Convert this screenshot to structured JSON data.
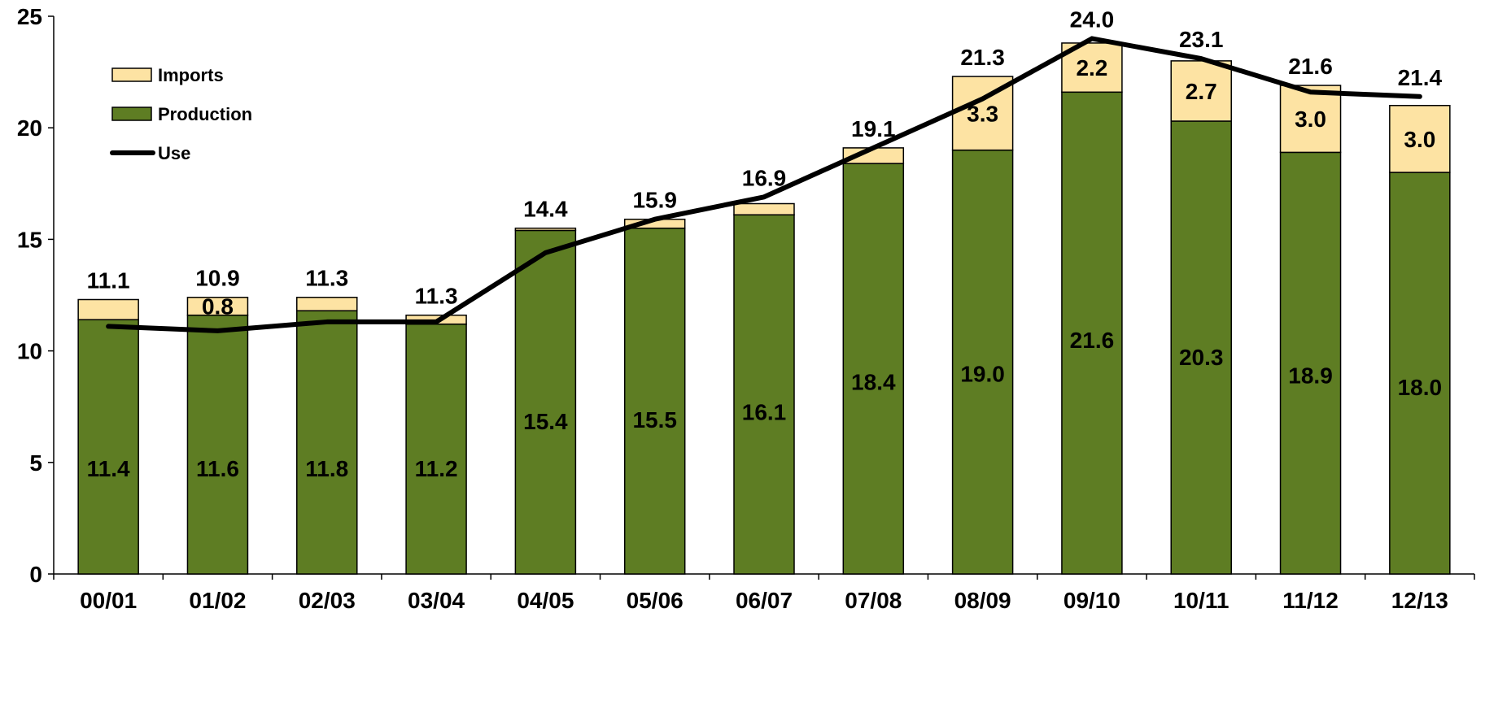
{
  "chart_data": {
    "type": "bar",
    "stacked": true,
    "title": "",
    "xlabel": "",
    "ylabel": "",
    "ylim": [
      0,
      25
    ],
    "yticks": [
      0,
      5,
      10,
      15,
      20,
      25
    ],
    "grid": false,
    "legend_position": "top-left",
    "categories": [
      "00/01",
      "01/02",
      "02/03",
      "03/04",
      "04/05",
      "05/06",
      "06/07",
      "07/08",
      "08/09",
      "09/10",
      "10/11",
      "11/12",
      "12/13"
    ],
    "series": [
      {
        "name": "Production",
        "kind": "bar",
        "color": "#5e7d23",
        "values": [
          11.4,
          11.6,
          11.8,
          11.2,
          15.4,
          15.5,
          16.1,
          18.4,
          19.0,
          21.6,
          20.3,
          18.9,
          18.0
        ],
        "labels": [
          "11.4",
          "11.6",
          "11.8",
          "11.2",
          "15.4",
          "15.5",
          "16.1",
          "18.4",
          "19.0",
          "21.6",
          "20.3",
          "18.9",
          "18.0"
        ]
      },
      {
        "name": "Imports",
        "kind": "bar",
        "color": "#fde3a3",
        "values": [
          0.9,
          0.8,
          0.6,
          0.4,
          0.1,
          0.4,
          0.5,
          0.7,
          3.3,
          2.2,
          2.7,
          3.0,
          3.0
        ],
        "labels": [
          "",
          "0.8",
          "",
          "",
          "",
          "",
          "",
          "",
          "3.3",
          "2.2",
          "2.7",
          "3.0",
          "3.0"
        ]
      },
      {
        "name": "Use",
        "kind": "line",
        "color": "#000000",
        "values": [
          11.1,
          10.9,
          11.3,
          11.3,
          14.4,
          15.9,
          16.9,
          19.1,
          21.3,
          24.0,
          23.1,
          21.6,
          21.4
        ],
        "labels": [
          "11.1",
          "10.9",
          "11.3",
          "11.3",
          "14.4",
          "15.9",
          "16.9",
          "19.1",
          "21.3",
          "24.0",
          "23.1",
          "21.6",
          "21.4"
        ]
      }
    ]
  }
}
